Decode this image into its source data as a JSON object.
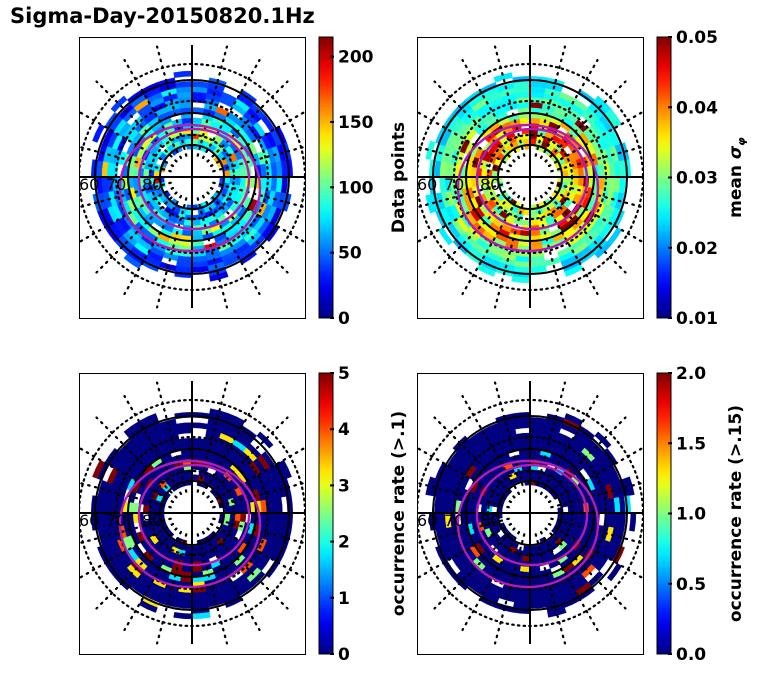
{
  "title": "Sigma-Day-20150820.1Hz",
  "chart_data": [
    {
      "type": "heatmap",
      "projection": "polar (magnetic latitude / MLT dial)",
      "title": "",
      "rings_lat_labels": [
        "60",
        "70",
        "80"
      ],
      "colormap": "jet",
      "colorbar": {
        "label": "Data points",
        "range": [
          0,
          215
        ],
        "ticks": [
          0,
          50,
          100,
          150,
          200
        ],
        "tick_labels": [
          "0",
          "50",
          "100",
          "150",
          "200"
        ]
      },
      "distribution": "mostly low (blue/cyan) with moderate (green/yellow) ring near 70-80 deg",
      "oval_boundaries": 2
    },
    {
      "type": "heatmap",
      "projection": "polar (magnetic latitude / MLT dial)",
      "title": "",
      "rings_lat_labels": [
        "60",
        "70",
        "80"
      ],
      "colormap": "jet",
      "colorbar": {
        "label": "mean σφ",
        "range": [
          0.01,
          0.05
        ],
        "ticks": [
          0.01,
          0.02,
          0.03,
          0.04,
          0.05
        ],
        "tick_labels": [
          "0.01",
          "0.02",
          "0.03",
          "0.04",
          "0.05"
        ]
      },
      "distribution": "cyan/green at low latitude, orange/red/dark-red inside auroral oval",
      "oval_boundaries": 2
    },
    {
      "type": "heatmap",
      "projection": "polar (magnetic latitude / MLT dial)",
      "title": "",
      "rings_lat_labels": [
        "60",
        "70",
        "80"
      ],
      "colormap": "jet",
      "colorbar": {
        "label": "occurrence rate (>.1)",
        "range": [
          0,
          5
        ],
        "ticks": [
          0,
          1,
          2,
          3,
          4,
          5
        ],
        "tick_labels": [
          "0",
          "1",
          "2",
          "3",
          "4",
          "5"
        ]
      },
      "distribution": "mostly 0 (dark blue), sparse high values along auroral oval",
      "oval_boundaries": 2
    },
    {
      "type": "heatmap",
      "projection": "polar (magnetic latitude / MLT dial)",
      "title": "",
      "rings_lat_labels": [
        "60",
        "70",
        "80"
      ],
      "colormap": "jet",
      "colorbar": {
        "label": "occurrence rate (>.15)",
        "range": [
          0.0,
          2.0
        ],
        "ticks": [
          0.0,
          0.5,
          1.0,
          1.5,
          2.0
        ],
        "tick_labels": [
          "0.0",
          "0.5",
          "1.0",
          "1.5",
          "2.0"
        ]
      },
      "distribution": "mostly 0 (dark blue), very sparse high values along auroral oval",
      "oval_boundaries": 2
    }
  ]
}
